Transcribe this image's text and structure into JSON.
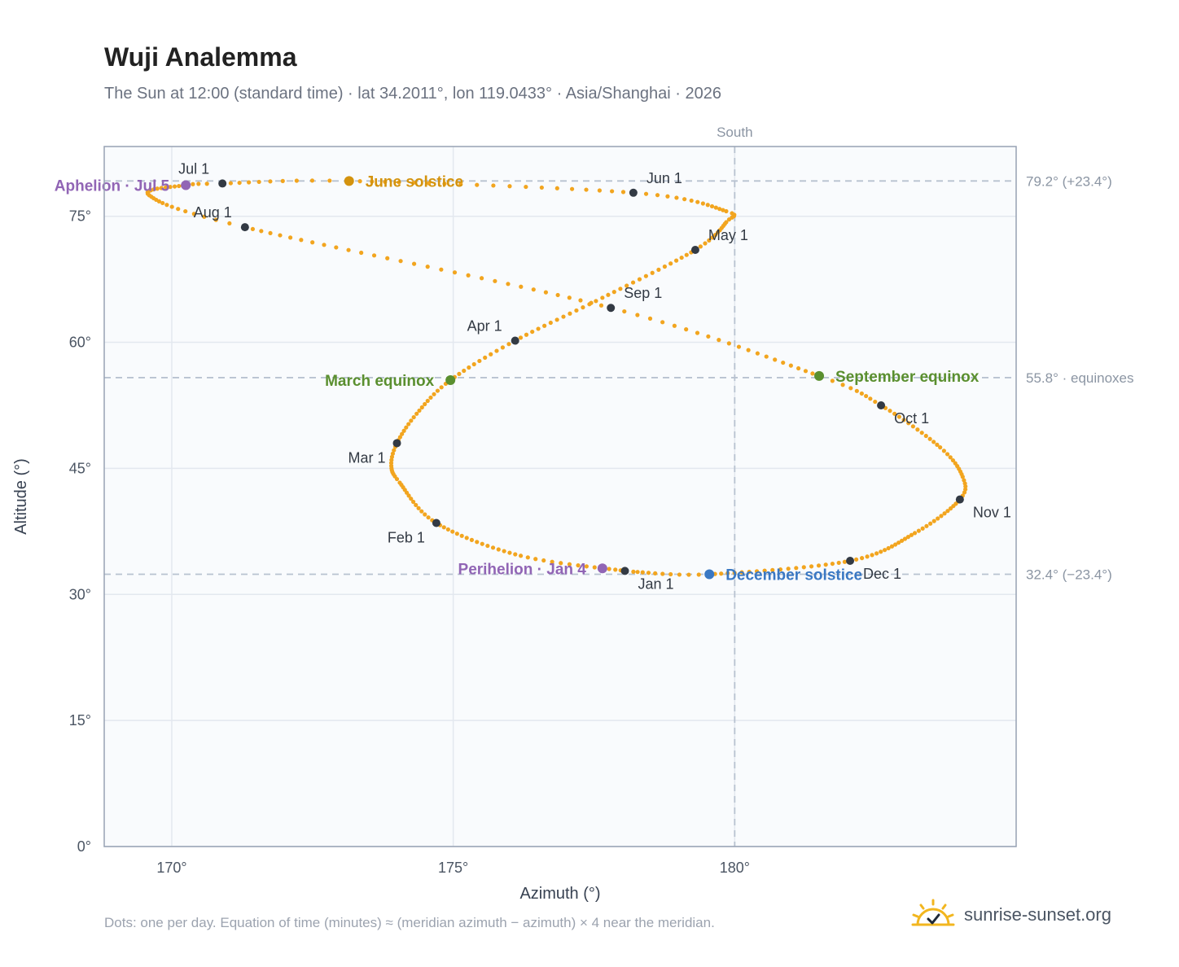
{
  "title": "Wuji Analemma",
  "subtitle": "The Sun at 12:00 (standard time) · lat 34.2011°, lon 119.0433° · Asia/Shanghai · 2026",
  "footnote": "Dots: one per day. Equation of time (minutes) ≈ (meridian azimuth − azimuth) × 4 near the meridian.",
  "brand": {
    "text": "sunrise-sunset.org",
    "icon": "sun-logo-icon"
  },
  "colors": {
    "curve": "#f2a51f",
    "month_dot": "#333a44",
    "solstice_june": "#d4930e",
    "solstice_december": "#3a78c3",
    "equinox": "#5a8f2f",
    "apsis": "#9165b5",
    "reference_line": "#b8c2d0",
    "plot_bg": "#f9fbfd",
    "plot_border": "#97a2b3"
  },
  "chart_data": {
    "type": "scatter",
    "xlabel": "Azimuth (°)",
    "ylabel": "Altitude (°)",
    "xlim": [
      168.8,
      185
    ],
    "ylim": [
      0,
      83.3
    ],
    "x_ticks": [
      {
        "value": 170,
        "label": "170°"
      },
      {
        "value": 175,
        "label": "175°"
      },
      {
        "value": 180,
        "label": "180°"
      }
    ],
    "y_ticks": [
      {
        "value": 0,
        "label": "0°"
      },
      {
        "value": 15,
        "label": "15°"
      },
      {
        "value": 30,
        "label": "30°"
      },
      {
        "value": 45,
        "label": "45°"
      },
      {
        "value": 60,
        "label": "60°"
      },
      {
        "value": 75,
        "label": "75°"
      }
    ],
    "grid": true,
    "reference_lines": {
      "vertical": [
        {
          "x": 180,
          "label": "South"
        }
      ],
      "horizontal": [
        {
          "y": 79.2,
          "label": "79.2° (+23.4°)"
        },
        {
          "y": 55.8,
          "label": "55.8° · equinoxes"
        },
        {
          "y": 32.4,
          "label": "32.4° (−23.4°)"
        }
      ]
    },
    "path_anchors": [
      {
        "date": "Jan 1",
        "doy": 1,
        "az": 178.05,
        "alt": 32.8
      },
      {
        "date": "Jan 15",
        "doy": 15,
        "az": 176.2,
        "alt": 34.6
      },
      {
        "date": "Feb 1",
        "doy": 32,
        "az": 174.7,
        "alt": 38.5
      },
      {
        "date": "Feb 15",
        "doy": 46,
        "az": 174.05,
        "alt": 43.3
      },
      {
        "date": "Feb 22",
        "doy": 53,
        "az": 173.9,
        "alt": 45.3
      },
      {
        "date": "Mar 1",
        "doy": 60,
        "az": 174.0,
        "alt": 48.0
      },
      {
        "date": "Mar 10",
        "doy": 69,
        "az": 174.35,
        "alt": 51.5
      },
      {
        "date": "Mar 20",
        "doy": 79,
        "az": 174.95,
        "alt": 55.5
      },
      {
        "date": "Apr 1",
        "doy": 91,
        "az": 176.1,
        "alt": 60.2
      },
      {
        "date": "Apr 15",
        "doy": 105,
        "az": 177.65,
        "alt": 65.3
      },
      {
        "date": "May 1",
        "doy": 121,
        "az": 179.3,
        "alt": 71.0
      },
      {
        "date": "May 12",
        "doy": 132,
        "az": 179.85,
        "alt": 74.3
      },
      {
        "date": "May 18",
        "doy": 138,
        "az": 179.85,
        "alt": 75.6
      },
      {
        "date": "Jun 1",
        "doy": 152,
        "az": 178.2,
        "alt": 77.8
      },
      {
        "date": "Jun 21",
        "doy": 172,
        "az": 173.15,
        "alt": 79.2
      },
      {
        "date": "Jul 1",
        "doy": 182,
        "az": 170.9,
        "alt": 78.9
      },
      {
        "date": "Jul 5",
        "doy": 186,
        "az": 170.25,
        "alt": 78.7
      },
      {
        "date": "Jul 18",
        "doy": 199,
        "az": 169.6,
        "alt": 77.5
      },
      {
        "date": "Aug 1",
        "doy": 213,
        "az": 171.3,
        "alt": 73.7
      },
      {
        "date": "Sep 1",
        "doy": 244,
        "az": 177.8,
        "alt": 64.1
      },
      {
        "date": "Sep 22",
        "doy": 265,
        "az": 181.5,
        "alt": 56.0
      },
      {
        "date": "Oct 1",
        "doy": 274,
        "az": 182.6,
        "alt": 52.5
      },
      {
        "date": "Oct 15",
        "doy": 288,
        "az": 183.65,
        "alt": 47.5
      },
      {
        "date": "Oct 25",
        "doy": 298,
        "az": 184.05,
        "alt": 44.0
      },
      {
        "date": "Nov 1",
        "doy": 305,
        "az": 184.0,
        "alt": 41.3
      },
      {
        "date": "Nov 15",
        "doy": 319,
        "az": 183.2,
        "alt": 37.3
      },
      {
        "date": "Dec 1",
        "doy": 335,
        "az": 182.05,
        "alt": 34.0
      },
      {
        "date": "Dec 21",
        "doy": 355,
        "az": 179.55,
        "alt": 32.4
      },
      {
        "date": "Dec 31",
        "doy": 365,
        "az": 178.2,
        "alt": 32.7
      }
    ],
    "month_markers": [
      {
        "label": "Jan 1",
        "az": 178.05,
        "alt": 32.8,
        "label_pos": "below-right"
      },
      {
        "label": "Feb 1",
        "az": 174.7,
        "alt": 38.5,
        "label_pos": "below-left"
      },
      {
        "label": "Mar 1",
        "az": 174.0,
        "alt": 48.0,
        "label_pos": "below-left"
      },
      {
        "label": "Apr 1",
        "az": 176.1,
        "alt": 60.2,
        "label_pos": "above-left"
      },
      {
        "label": "May 1",
        "az": 179.3,
        "alt": 71.0,
        "label_pos": "above-right"
      },
      {
        "label": "Jun 1",
        "az": 178.2,
        "alt": 77.8,
        "label_pos": "above-right"
      },
      {
        "label": "Jul 1",
        "az": 170.9,
        "alt": 78.9,
        "label_pos": "above-left"
      },
      {
        "label": "Aug 1",
        "az": 171.3,
        "alt": 73.7,
        "label_pos": "above-left"
      },
      {
        "label": "Sep 1",
        "az": 177.8,
        "alt": 64.1,
        "label_pos": "above-right"
      },
      {
        "label": "Oct 1",
        "az": 182.6,
        "alt": 52.5,
        "label_pos": "below-right"
      },
      {
        "label": "Nov 1",
        "az": 184.0,
        "alt": 41.3,
        "label_pos": "below-right"
      },
      {
        "label": "Dec 1",
        "az": 182.05,
        "alt": 34.0,
        "label_pos": "below-right"
      }
    ],
    "events": [
      {
        "label": "June solstice",
        "az": 173.15,
        "alt": 79.2,
        "color_key": "solstice_june",
        "label_side": "right"
      },
      {
        "label": "December solstice",
        "az": 179.55,
        "alt": 32.4,
        "color_key": "solstice_december",
        "label_side": "right"
      },
      {
        "label": "March equinox",
        "az": 174.95,
        "alt": 55.5,
        "color_key": "equinox",
        "label_side": "left"
      },
      {
        "label": "September equinox",
        "az": 181.5,
        "alt": 56.0,
        "color_key": "equinox",
        "label_side": "right"
      },
      {
        "label": "Aphelion · Jul 5",
        "az": 170.25,
        "alt": 78.7,
        "color_key": "apsis",
        "label_side": "left"
      },
      {
        "label": "Perihelion · Jan 4",
        "az": 177.65,
        "alt": 33.1,
        "color_key": "apsis",
        "label_side": "left"
      }
    ]
  }
}
